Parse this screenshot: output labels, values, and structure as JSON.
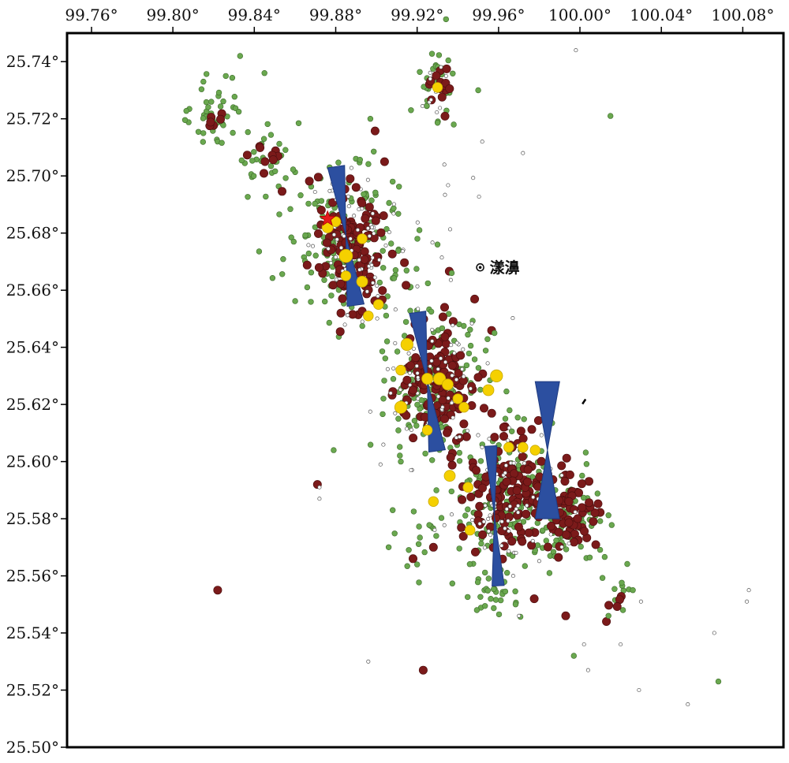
{
  "map": {
    "extent": {
      "lon_min": 99.748,
      "lon_max": 100.1,
      "lat_min": 25.5,
      "lat_max": 25.75
    },
    "x_ticks": [
      {
        "value": 99.76,
        "label": "99.76°"
      },
      {
        "value": 99.8,
        "label": "99.80°"
      },
      {
        "value": 99.84,
        "label": "99.84°"
      },
      {
        "value": 99.88,
        "label": "99.88°"
      },
      {
        "value": 99.92,
        "label": "99.92°"
      },
      {
        "value": 99.96,
        "label": "99.96°"
      },
      {
        "value": 100.0,
        "label": "100.00°"
      },
      {
        "value": 100.04,
        "label": "100.04°"
      },
      {
        "value": 100.08,
        "label": "100.08°"
      }
    ],
    "y_ticks": [
      {
        "value": 25.74,
        "label": "25.74°"
      },
      {
        "value": 25.72,
        "label": "25.72°"
      },
      {
        "value": 25.7,
        "label": "25.70°"
      },
      {
        "value": 25.68,
        "label": "25.68°"
      },
      {
        "value": 25.66,
        "label": "25.66°"
      },
      {
        "value": 25.64,
        "label": "25.64°"
      },
      {
        "value": 25.62,
        "label": "25.62°"
      },
      {
        "value": 25.6,
        "label": "25.60°"
      },
      {
        "value": 25.58,
        "label": "25.58°"
      },
      {
        "value": 25.56,
        "label": "25.56°"
      },
      {
        "value": 25.54,
        "label": "25.54°"
      },
      {
        "value": 25.52,
        "label": "25.52°"
      },
      {
        "value": 25.5,
        "label": "25.50°"
      }
    ],
    "town": {
      "name": "漾濞",
      "lon": 99.951,
      "lat": 25.668
    },
    "mainshock": {
      "lon": 99.876,
      "lat": 25.685,
      "color": "#e41a1c"
    },
    "event_classes": [
      {
        "id": "tiny",
        "color": "#ffffff",
        "stroke": "#555555"
      },
      {
        "id": "small",
        "color": "#6aa84f",
        "stroke": "#3d6b2a"
      },
      {
        "id": "medium",
        "color": "#7b1a1a",
        "stroke": "#4a0e0e"
      },
      {
        "id": "large",
        "color": "#f5d000",
        "stroke": "#c8a900"
      }
    ],
    "event_clusters": [
      {
        "class": "small",
        "count": 40,
        "lon": 99.82,
        "lat": 25.722,
        "slon": 0.006,
        "slat": 0.006
      },
      {
        "class": "medium",
        "count": 6,
        "lon": 99.823,
        "lat": 25.72,
        "slon": 0.003,
        "slat": 0.003
      },
      {
        "class": "small",
        "count": 30,
        "lon": 99.845,
        "lat": 25.705,
        "slon": 0.007,
        "slat": 0.008
      },
      {
        "class": "medium",
        "count": 10,
        "lon": 99.848,
        "lat": 25.703,
        "slon": 0.006,
        "slat": 0.006
      },
      {
        "class": "small",
        "count": 30,
        "lon": 99.93,
        "lat": 25.733,
        "slon": 0.004,
        "slat": 0.006
      },
      {
        "class": "medium",
        "count": 14,
        "lon": 99.931,
        "lat": 25.733,
        "slon": 0.003,
        "slat": 0.004
      },
      {
        "class": "tiny",
        "count": 10,
        "lon": 99.93,
        "lat": 25.733,
        "slon": 0.004,
        "slat": 0.005
      },
      {
        "class": "small",
        "count": 170,
        "lon": 99.885,
        "lat": 25.675,
        "slon": 0.014,
        "slat": 0.014
      },
      {
        "class": "medium",
        "count": 130,
        "lon": 99.888,
        "lat": 25.675,
        "slon": 0.009,
        "slat": 0.011
      },
      {
        "class": "tiny",
        "count": 70,
        "lon": 99.89,
        "lat": 25.675,
        "slon": 0.013,
        "slat": 0.013
      },
      {
        "class": "small",
        "count": 170,
        "lon": 99.928,
        "lat": 25.628,
        "slon": 0.013,
        "slat": 0.013
      },
      {
        "class": "medium",
        "count": 130,
        "lon": 99.93,
        "lat": 25.628,
        "slon": 0.01,
        "slat": 0.011
      },
      {
        "class": "tiny",
        "count": 70,
        "lon": 99.93,
        "lat": 25.628,
        "slon": 0.013,
        "slat": 0.012
      },
      {
        "class": "small",
        "count": 160,
        "lon": 99.965,
        "lat": 25.585,
        "slon": 0.014,
        "slat": 0.012
      },
      {
        "class": "medium",
        "count": 130,
        "lon": 99.965,
        "lat": 25.59,
        "slon": 0.01,
        "slat": 0.011
      },
      {
        "class": "tiny",
        "count": 60,
        "lon": 99.965,
        "lat": 25.585,
        "slon": 0.013,
        "slat": 0.012
      },
      {
        "class": "small",
        "count": 90,
        "lon": 99.995,
        "lat": 25.58,
        "slon": 0.009,
        "slat": 0.009
      },
      {
        "class": "medium",
        "count": 70,
        "lon": 99.997,
        "lat": 25.582,
        "slon": 0.007,
        "slat": 0.007
      },
      {
        "class": "small",
        "count": 28,
        "lon": 99.955,
        "lat": 25.555,
        "slon": 0.009,
        "slat": 0.004
      },
      {
        "class": "small",
        "count": 8,
        "lon": 100.02,
        "lat": 25.553,
        "slon": 0.004,
        "slat": 0.003
      },
      {
        "class": "medium",
        "count": 4,
        "lon": 100.018,
        "lat": 25.552,
        "slon": 0.003,
        "slat": 0.003
      },
      {
        "class": "small",
        "count": 12,
        "lon": 99.92,
        "lat": 25.575,
        "slon": 0.006,
        "slat": 0.008
      },
      {
        "class": "tiny",
        "count": 10,
        "lon": 99.935,
        "lat": 25.69,
        "slon": 0.01,
        "slat": 0.012
      }
    ],
    "events": [
      {
        "class": "medium",
        "lon": 99.822,
        "lat": 25.555
      },
      {
        "class": "medium",
        "lon": 99.923,
        "lat": 25.527
      },
      {
        "class": "medium",
        "lon": 99.993,
        "lat": 25.546
      },
      {
        "class": "medium",
        "lon": 100.013,
        "lat": 25.544
      },
      {
        "class": "medium",
        "lon": 99.871,
        "lat": 25.592
      },
      {
        "class": "medium",
        "lon": 99.904,
        "lat": 25.705
      },
      {
        "class": "medium",
        "lon": 99.89,
        "lat": 25.696
      },
      {
        "class": "medium",
        "lon": 99.918,
        "lat": 25.625
      },
      {
        "class": "medium",
        "lon": 99.928,
        "lat": 25.57
      },
      {
        "class": "medium",
        "lon": 99.918,
        "lat": 25.566
      },
      {
        "class": "small",
        "lon": 99.833,
        "lat": 25.742
      },
      {
        "class": "small",
        "lon": 99.845,
        "lat": 25.736
      },
      {
        "class": "small",
        "lon": 99.826,
        "lat": 25.735
      },
      {
        "class": "small",
        "lon": 99.815,
        "lat": 25.733
      },
      {
        "class": "small",
        "lon": 99.917,
        "lat": 25.723
      },
      {
        "class": "small",
        "lon": 100.015,
        "lat": 25.721
      },
      {
        "class": "small",
        "lon": 100.068,
        "lat": 25.523
      },
      {
        "class": "small",
        "lon": 99.997,
        "lat": 25.532
      },
      {
        "class": "small",
        "lon": 100.026,
        "lat": 25.555
      },
      {
        "class": "small",
        "lon": 100.014,
        "lat": 25.546
      },
      {
        "class": "small",
        "lon": 99.866,
        "lat": 25.661
      },
      {
        "class": "small",
        "lon": 99.879,
        "lat": 25.604
      },
      {
        "class": "small",
        "lon": 99.938,
        "lat": 25.718
      },
      {
        "class": "small",
        "lon": 99.95,
        "lat": 25.73
      },
      {
        "class": "small",
        "lon": 99.897,
        "lat": 25.72
      },
      {
        "class": "small",
        "lon": 99.877,
        "lat": 25.703
      },
      {
        "class": "small",
        "lon": 99.908,
        "lat": 25.698
      },
      {
        "class": "small",
        "lon": 99.93,
        "lat": 25.676
      },
      {
        "class": "small",
        "lon": 99.937,
        "lat": 25.666
      },
      {
        "class": "small",
        "lon": 99.912,
        "lat": 25.6
      },
      {
        "class": "small",
        "lon": 99.908,
        "lat": 25.583
      },
      {
        "class": "small",
        "lon": 99.906,
        "lat": 25.57
      },
      {
        "class": "small",
        "lon": 99.958,
        "lat": 25.645
      },
      {
        "class": "small",
        "lon": 99.92,
        "lat": 25.564
      },
      {
        "class": "tiny",
        "lon": 99.998,
        "lat": 25.744
      },
      {
        "class": "tiny",
        "lon": 99.972,
        "lat": 25.708
      },
      {
        "class": "tiny",
        "lon": 99.952,
        "lat": 25.712
      },
      {
        "class": "tiny",
        "lon": 100.083,
        "lat": 25.555
      },
      {
        "class": "tiny",
        "lon": 100.082,
        "lat": 25.551
      },
      {
        "class": "tiny",
        "lon": 100.03,
        "lat": 25.551
      },
      {
        "class": "tiny",
        "lon": 100.066,
        "lat": 25.54
      },
      {
        "class": "tiny",
        "lon": 100.053,
        "lat": 25.515
      },
      {
        "class": "tiny",
        "lon": 100.029,
        "lat": 25.52
      },
      {
        "class": "tiny",
        "lon": 100.004,
        "lat": 25.527
      },
      {
        "class": "tiny",
        "lon": 99.896,
        "lat": 25.53
      },
      {
        "class": "tiny",
        "lon": 99.872,
        "lat": 25.587
      },
      {
        "class": "tiny",
        "lon": 99.872,
        "lat": 25.591
      },
      {
        "class": "tiny",
        "lon": 99.902,
        "lat": 25.599
      },
      {
        "class": "tiny",
        "lon": 99.917,
        "lat": 25.597
      },
      {
        "class": "tiny",
        "lon": 99.97,
        "lat": 25.546
      },
      {
        "class": "tiny",
        "lon": 100.002,
        "lat": 25.536
      },
      {
        "class": "tiny",
        "lon": 100.02,
        "lat": 25.536
      }
    ],
    "large_events": [
      {
        "lon": 99.876,
        "lat": 25.682,
        "size": 1.0
      },
      {
        "lon": 99.88,
        "lat": 25.684,
        "size": 0.9
      },
      {
        "lon": 99.885,
        "lat": 25.672,
        "size": 1.2
      },
      {
        "lon": 99.893,
        "lat": 25.678,
        "size": 0.9
      },
      {
        "lon": 99.893,
        "lat": 25.663,
        "size": 1.0
      },
      {
        "lon": 99.885,
        "lat": 25.665,
        "size": 0.9
      },
      {
        "lon": 99.901,
        "lat": 25.655,
        "size": 0.9
      },
      {
        "lon": 99.896,
        "lat": 25.651,
        "size": 0.9
      },
      {
        "lon": 99.915,
        "lat": 25.641,
        "size": 1.1
      },
      {
        "lon": 99.925,
        "lat": 25.629,
        "size": 1.0
      },
      {
        "lon": 99.931,
        "lat": 25.629,
        "size": 1.1
      },
      {
        "lon": 99.935,
        "lat": 25.627,
        "size": 1.0
      },
      {
        "lon": 99.959,
        "lat": 25.63,
        "size": 1.1
      },
      {
        "lon": 99.955,
        "lat": 25.625,
        "size": 1.0
      },
      {
        "lon": 99.94,
        "lat": 25.622,
        "size": 0.9
      },
      {
        "lon": 99.943,
        "lat": 25.619,
        "size": 0.9
      },
      {
        "lon": 99.912,
        "lat": 25.619,
        "size": 1.1
      },
      {
        "lon": 99.925,
        "lat": 25.611,
        "size": 0.9
      },
      {
        "lon": 99.965,
        "lat": 25.605,
        "size": 0.9
      },
      {
        "lon": 99.972,
        "lat": 25.605,
        "size": 0.9
      },
      {
        "lon": 99.978,
        "lat": 25.604,
        "size": 0.9
      },
      {
        "lon": 99.936,
        "lat": 25.595,
        "size": 1.0
      },
      {
        "lon": 99.945,
        "lat": 25.591,
        "size": 0.9
      },
      {
        "lon": 99.928,
        "lat": 25.586,
        "size": 0.9
      },
      {
        "lon": 99.946,
        "lat": 25.576,
        "size": 0.9
      },
      {
        "lon": 99.93,
        "lat": 25.731,
        "size": 0.9
      },
      {
        "lon": 99.912,
        "lat": 25.632,
        "size": 0.9
      }
    ],
    "focal_mechanisms": [
      {
        "lon": 99.885,
        "lat": 25.679,
        "half_len_lat": 0.0245,
        "half_width_lon": 0.0042,
        "angle": -8,
        "color": "#2c4fa0"
      },
      {
        "lon": 99.925,
        "lat": 25.628,
        "half_len_lat": 0.0245,
        "half_width_lon": 0.0041,
        "angle": -8,
        "color": "#2c4fa0"
      },
      {
        "lon": 99.958,
        "lat": 25.581,
        "half_len_lat": 0.0245,
        "half_width_lon": 0.003,
        "angle": -3,
        "color": "#2c4fa0"
      },
      {
        "lon": 99.984,
        "lat": 25.604,
        "half_len_lat": 0.024,
        "half_width_lon": 0.006,
        "angle": 0,
        "color": "#2c4fa0"
      }
    ],
    "small_mark": {
      "lon": 100.002,
      "lat": 25.621
    }
  }
}
